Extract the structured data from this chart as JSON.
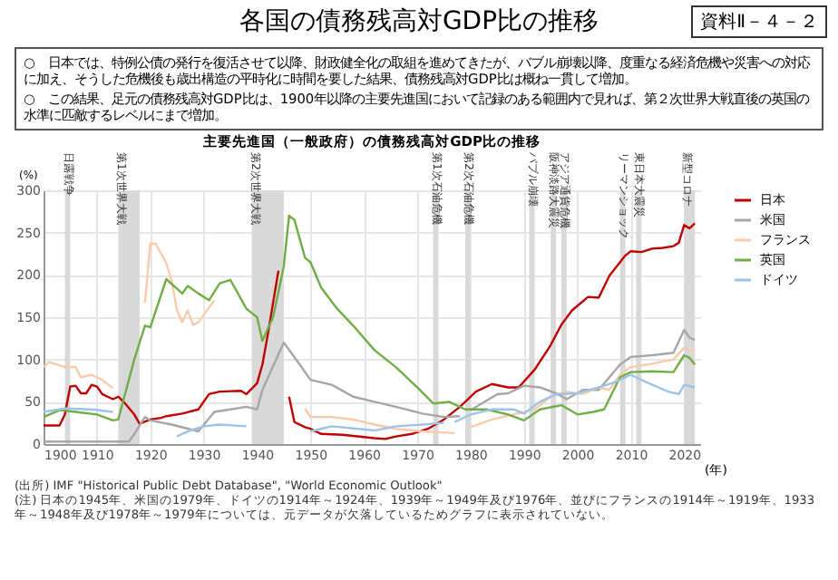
{
  "chart_data": {
    "type": "line",
    "title": "各国の債務残高対GDP比の推移",
    "subtitle": "主要先進国（一般政府）の債務残高対GDP比の推移",
    "ylabel": "(%)",
    "xlabel": "(年)",
    "annotations": [
      "資料Ⅱ－４－２",
      "○　日本では、特例公債の発行を復活させて以降、財政健全化の取組を進めてきたが、バブル崩壊以降、度重なる経済危機や災害への対応に加え、そうした危機後も歳出構造の平時化に時間を要した結果、債務残高対GDP比は概ね一貫して増加。",
      "○　この結果、足元の債務残高対GDP比は、1900年以降の主要先進国において記録のある範囲内で見れば、第２次世界大戦直後の英国の水準に匹敵するレベルにまで増加。",
      "(出所) IMF \"Historical Public Debt Database\", \"World Economic Outlook\"",
      "(注) 日本の1945年、米国の1979年、ドイツの1914年～1924年、1939年～1949年及び1976年、並びにフランスの1914年～1919年、1933年～1948年及び1978年～1979年については、元データが欠落しているためグラフに表示されていない。"
    ],
    "xlim": [
      1900,
      2023
    ],
    "xticks": [
      1900,
      1910,
      1920,
      1930,
      1940,
      1950,
      1960,
      1970,
      1980,
      1990,
      2000,
      2010,
      2020
    ],
    "ylim": [
      0,
      300
    ],
    "yticks": [
      0,
      50,
      100,
      150,
      200,
      250,
      300
    ],
    "grid": true,
    "legend": "right",
    "series": [
      {
        "name": "日本",
        "color": "#c00000",
        "x": [
          1900,
          1903,
          1904,
          1905,
          1906,
          1907,
          1908,
          1909,
          1910,
          1911,
          1913,
          1914,
          1915,
          1917,
          1918,
          1920,
          1922,
          1923,
          1926,
          1929,
          1931,
          1933,
          1937,
          1938,
          1940,
          1941,
          1942,
          1944,
          1945,
          1946,
          1947,
          1949,
          1950,
          1952,
          1956,
          1962,
          1964,
          1966,
          1969,
          1972,
          1975,
          1978,
          1981,
          1984,
          1987,
          1989,
          1992,
          1995,
          1997,
          1999,
          2002,
          2004,
          2006,
          2009,
          2010,
          2012,
          2014,
          2016,
          2018,
          2019,
          2020,
          2021,
          2022
        ],
        "values": [
          22,
          22,
          35,
          68,
          69,
          60,
          60,
          70,
          68,
          59,
          53,
          56,
          50,
          35,
          24,
          29,
          31,
          33,
          36,
          41,
          59,
          62,
          63,
          59,
          72,
          94,
          129,
          205,
          null,
          56,
          26,
          20,
          18,
          12,
          11,
          7,
          6,
          9,
          12,
          18,
          29,
          44,
          62,
          71,
          67,
          67,
          88,
          117,
          141,
          158,
          174,
          173,
          199,
          223,
          228,
          227,
          231,
          232,
          234,
          238,
          259,
          255,
          261
        ]
      },
      {
        "name": "米国",
        "color": "#a6a6a6",
        "x": [
          1900,
          1916,
          1917,
          1919,
          1920,
          1924,
          1929,
          1932,
          1935,
          1938,
          1940,
          1941,
          1945,
          1948,
          1950,
          1954,
          1958,
          1962,
          1966,
          1971,
          1975,
          1978,
          1979,
          1980,
          1981,
          1985,
          1987,
          1990,
          1993,
          1996,
          1998,
          2001,
          2004,
          2008,
          2010,
          2014,
          2018,
          2020,
          2021,
          2022
        ],
        "values": [
          3,
          3,
          12,
          32,
          28,
          23,
          15,
          38,
          41,
          44,
          41,
          64,
          120,
          94,
          76,
          70,
          56,
          50,
          44,
          36,
          32,
          33,
          null,
          40,
          44,
          59,
          60,
          69,
          67,
          60,
          53,
          64,
          64,
          94,
          103,
          105,
          108,
          135,
          126,
          123
        ]
      },
      {
        "name": "フランス",
        "color": "#f8cbad",
        "x": [
          1900,
          1901,
          1904,
          1906,
          1907,
          1909,
          1911,
          1913,
          1914,
          1919,
          1920,
          1921,
          1923,
          1924,
          1925,
          1926,
          1927,
          1928,
          1929,
          1932,
          1933,
          1949,
          1950,
          1954,
          1958,
          1962,
          1966,
          1971,
          1977,
          1978,
          1980,
          1984,
          1988,
          1992,
          1995,
          1998,
          2001,
          2004,
          2006,
          2008,
          2010,
          2014,
          2018,
          2020,
          2021,
          2022
        ],
        "values": [
          91,
          97,
          91,
          91,
          79,
          82,
          76,
          66,
          null,
          167,
          237,
          237,
          214,
          193,
          158,
          144,
          158,
          141,
          144,
          170,
          null,
          42,
          32,
          32,
          29,
          23,
          18,
          15,
          13,
          null,
          20,
          29,
          35,
          41,
          56,
          62,
          59,
          67,
          64,
          82,
          91,
          95,
          100,
          114,
          111,
          110
        ]
      },
      {
        "name": "英国",
        "color": "#70ad47",
        "x": [
          1900,
          1903,
          1906,
          1910,
          1913,
          1914,
          1917,
          1919,
          1920,
          1923,
          1926,
          1927,
          1929,
          1931,
          1933,
          1935,
          1938,
          1940,
          1941,
          1943,
          1945,
          1946,
          1947,
          1949,
          1950,
          1952,
          1955,
          1958,
          1962,
          1966,
          1970,
          1973,
          1976,
          1979,
          1983,
          1987,
          1990,
          1993,
          1997,
          2000,
          2003,
          2005,
          2008,
          2010,
          2014,
          2018,
          2020,
          2021,
          2022
        ],
        "values": [
          32,
          40,
          38,
          35,
          28,
          29,
          100,
          140,
          138,
          195,
          178,
          187,
          178,
          170,
          190,
          194,
          160,
          150,
          122,
          150,
          210,
          270,
          265,
          220,
          215,
          185,
          160,
          140,
          111,
          91,
          67,
          48,
          50,
          41,
          41,
          35,
          28,
          41,
          46,
          35,
          38,
          41,
          79,
          85,
          86,
          85,
          105,
          102,
          94
        ]
      },
      {
        "name": "ドイツ",
        "color": "#9dc3e6",
        "x": [
          1900,
          1904,
          1909,
          1913,
          1914,
          1925,
          1927,
          1930,
          1933,
          1938,
          1939,
          1950,
          1954,
          1962,
          1966,
          1971,
          1975,
          1976,
          1977,
          1980,
          1984,
          1988,
          1990,
          1993,
          1996,
          2000,
          2004,
          2007,
          2010,
          2013,
          2017,
          2019,
          2020,
          2022
        ],
        "values": [
          38,
          42,
          41,
          38,
          null,
          9,
          15,
          21,
          23,
          21,
          null,
          15,
          21,
          16,
          21,
          23,
          25,
          null,
          26,
          35,
          41,
          41,
          36,
          50,
          59,
          60,
          67,
          73,
          82,
          73,
          62,
          59,
          70,
          67
        ]
      }
    ],
    "bands": [
      {
        "axis": "x",
        "from": 1904,
        "to": 1905,
        "label": "日露戦争",
        "color": "#d9d9d9"
      },
      {
        "axis": "x",
        "from": 1914,
        "to": 1918,
        "label": "第1次世界大戦",
        "color": "#d9d9d9"
      },
      {
        "axis": "x",
        "from": 1939,
        "to": 1945,
        "label": "第2次世界大戦",
        "color": "#d9d9d9"
      },
      {
        "axis": "x",
        "from": 1973,
        "to": 1974,
        "label": "第1次石油危機",
        "color": "#d9d9d9"
      },
      {
        "axis": "x",
        "from": 1979,
        "to": 1980,
        "label": "第2次石油危機",
        "color": "#d9d9d9"
      },
      {
        "axis": "x",
        "from": 1991,
        "to": 1992,
        "label": "バブル崩壊",
        "color": "#d9d9d9"
      },
      {
        "axis": "x",
        "from": 1995,
        "to": 1996,
        "label": "阪神淡路大震災",
        "color": "#d9d9d9"
      },
      {
        "axis": "x",
        "from": 1997,
        "to": 1998,
        "label": "アジア通貨危機",
        "color": "#d9d9d9"
      },
      {
        "axis": "x",
        "from": 2008,
        "to": 2009,
        "label": "リーマンショック",
        "color": "#d9d9d9"
      },
      {
        "axis": "x",
        "from": 2011,
        "to": 2012,
        "label": "東日本大震災",
        "color": "#d9d9d9"
      },
      {
        "axis": "x",
        "from": 2020,
        "to": 2022,
        "label": "新型コロナ",
        "color": "#d9d9d9"
      }
    ]
  }
}
